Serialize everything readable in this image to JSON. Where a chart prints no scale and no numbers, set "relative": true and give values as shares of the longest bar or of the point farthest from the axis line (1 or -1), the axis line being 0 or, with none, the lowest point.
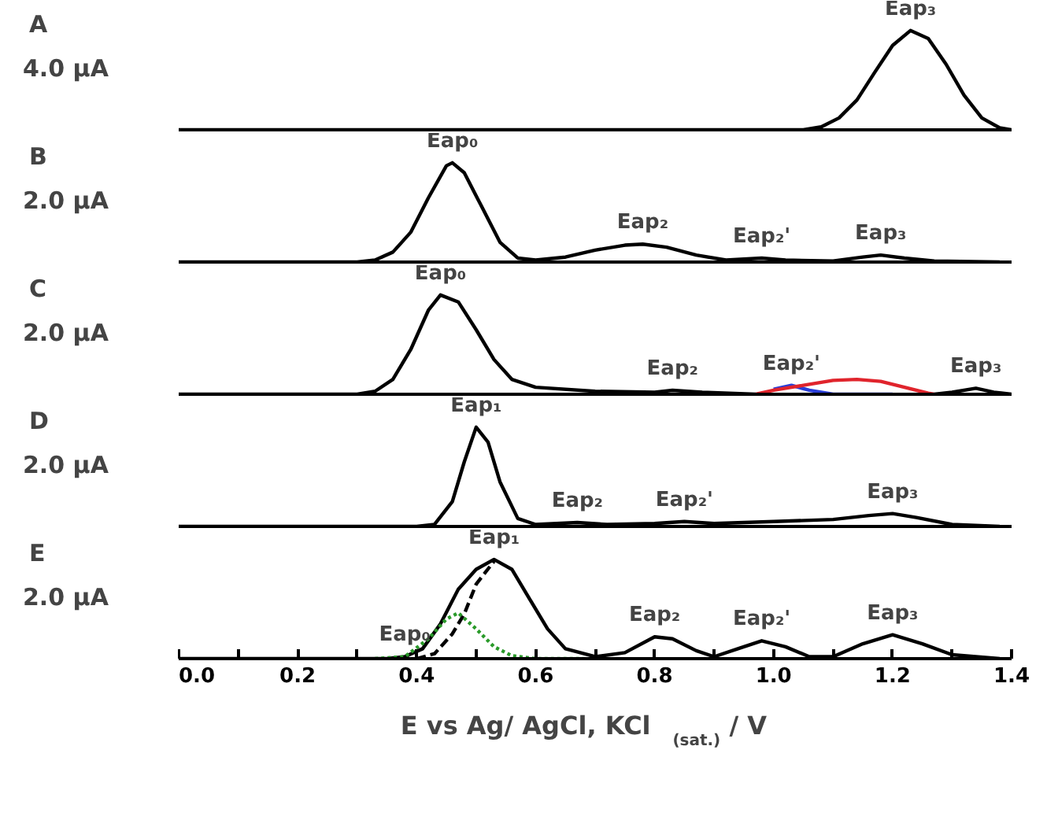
{
  "chart_data": [
    {
      "type": "line",
      "title": "A",
      "relative": true,
      "xlim": [
        0.0,
        1.4
      ],
      "tick_labels": false,
      "annotations": [
        "4.0 μA",
        {
          "text": "Eap₃",
          "x": 1.23,
          "y": 1.0
        }
      ],
      "series": [
        {
          "color": "#000000",
          "x": [
            0.0,
            0.2,
            0.4,
            0.6,
            0.8,
            1.0,
            1.05,
            1.08,
            1.11,
            1.14,
            1.17,
            1.2,
            1.23,
            1.26,
            1.29,
            1.32,
            1.35,
            1.38,
            1.4
          ],
          "values": [
            0,
            0,
            0,
            0,
            0,
            0,
            0,
            0.03,
            0.12,
            0.3,
            0.58,
            0.85,
            1.0,
            0.92,
            0.66,
            0.35,
            0.12,
            0.02,
            0
          ]
        }
      ]
    },
    {
      "type": "line",
      "title": "B",
      "relative": true,
      "xlim": [
        0.0,
        1.4
      ],
      "tick_labels": false,
      "annotations": [
        "2.0 μA",
        {
          "text": "Eap₀",
          "x": 0.46,
          "y": 1.0
        },
        {
          "text": "Eap₂",
          "x": 0.78,
          "y": 0.18
        },
        {
          "text": "Eap₂'",
          "x": 0.98,
          "y": 0.04
        },
        {
          "text": "Eap₃",
          "x": 1.18,
          "y": 0.07
        }
      ],
      "series": [
        {
          "color": "#000000",
          "x": [
            0.0,
            0.3,
            0.33,
            0.36,
            0.39,
            0.42,
            0.45,
            0.46,
            0.48,
            0.51,
            0.54,
            0.57,
            0.6,
            0.65,
            0.7,
            0.75,
            0.78,
            0.82,
            0.87,
            0.92,
            0.98,
            1.02,
            1.1,
            1.15,
            1.18,
            1.22,
            1.27,
            1.38
          ],
          "values": [
            0,
            0,
            0.02,
            0.1,
            0.3,
            0.65,
            0.97,
            1.0,
            0.9,
            0.55,
            0.2,
            0.04,
            0.02,
            0.05,
            0.12,
            0.17,
            0.18,
            0.15,
            0.07,
            0.02,
            0.04,
            0.02,
            0.01,
            0.05,
            0.07,
            0.04,
            0.01,
            0
          ]
        }
      ]
    },
    {
      "type": "line",
      "title": "C",
      "relative": true,
      "xlim": [
        0.0,
        1.4
      ],
      "tick_labels": false,
      "annotations": [
        "2.0 μA",
        {
          "text": "Eap₀",
          "x": 0.44,
          "y": 1.0
        },
        {
          "text": "Eap₂",
          "x": 0.83,
          "y": 0.04
        },
        {
          "text": "Eap₂'",
          "x": 1.03,
          "y": 0.09
        },
        {
          "text": "Eap₃",
          "x": 1.34,
          "y": 0.06
        }
      ],
      "series": [
        {
          "color": "#000000",
          "x": [
            0.0,
            0.3,
            0.33,
            0.36,
            0.39,
            0.42,
            0.44,
            0.47,
            0.5,
            0.53,
            0.56,
            0.6,
            0.7,
            0.8,
            0.83,
            0.88,
            0.97,
            1.0,
            1.27,
            1.3,
            1.34,
            1.37,
            1.4
          ],
          "values": [
            0,
            0,
            0.03,
            0.15,
            0.45,
            0.85,
            1.0,
            0.93,
            0.65,
            0.35,
            0.15,
            0.07,
            0.03,
            0.02,
            0.04,
            0.02,
            0,
            null,
            0,
            0.02,
            0.06,
            0.02,
            0
          ]
        },
        {
          "color": "#2a3ed8",
          "x": [
            1.0,
            1.03,
            1.06,
            1.1,
            1.2
          ],
          "values": [
            0.05,
            0.09,
            0.04,
            0.0,
            0.0
          ]
        },
        {
          "color": "#e0242c",
          "x": [
            0.97,
            1.0,
            1.05,
            1.1,
            1.14,
            1.18,
            1.22,
            1.26,
            1.27
          ],
          "values": [
            0,
            0.04,
            0.09,
            0.14,
            0.15,
            0.13,
            0.07,
            0.01,
            0
          ]
        }
      ]
    },
    {
      "type": "line",
      "title": "D",
      "relative": true,
      "xlim": [
        0.0,
        1.4
      ],
      "tick_labels": false,
      "annotations": [
        "2.0 μA",
        {
          "text": "Eap₁",
          "x": 0.5,
          "y": 1.0
        },
        {
          "text": "Eap₂",
          "x": 0.67,
          "y": 0.04
        },
        {
          "text": "Eap₂'",
          "x": 0.85,
          "y": 0.05
        },
        {
          "text": "Eap₃",
          "x": 1.2,
          "y": 0.13
        }
      ],
      "series": [
        {
          "color": "#000000",
          "x": [
            0.0,
            0.4,
            0.43,
            0.46,
            0.48,
            0.5,
            0.52,
            0.54,
            0.57,
            0.6,
            0.67,
            0.72,
            0.8,
            0.85,
            0.9,
            1.0,
            1.1,
            1.16,
            1.2,
            1.24,
            1.3,
            1.38
          ],
          "values": [
            0,
            0,
            0.02,
            0.25,
            0.65,
            1.0,
            0.85,
            0.45,
            0.08,
            0.02,
            0.04,
            0.02,
            0.03,
            0.05,
            0.03,
            0.05,
            0.07,
            0.11,
            0.13,
            0.09,
            0.02,
            0
          ]
        }
      ]
    },
    {
      "type": "line",
      "title": "E",
      "relative": true,
      "xlim": [
        0.0,
        1.4
      ],
      "tick_labels": "x",
      "xlabel": "E vs Ag/ AgCl, KCl$_{(sat.)}$ / V",
      "xticks": [
        {
          "value": 0.0,
          "label": "0.0"
        },
        {
          "value": 0.1,
          "label": null
        },
        0.2,
        {
          "value": 0.3,
          "label": null
        },
        0.4,
        {
          "value": 0.5,
          "label": null
        },
        0.6,
        {
          "value": 0.7,
          "label": null
        },
        0.8,
        {
          "value": 0.9,
          "label": null
        },
        {
          "value": 1.0,
          "label": "1.0"
        },
        {
          "value": 1.1,
          "label": null
        },
        1.2,
        {
          "value": 1.3,
          "label": null
        },
        1.4
      ],
      "annotations": [
        "2.0 μA",
        {
          "text": "Eap₀",
          "x": 0.38,
          "y": 0.02
        },
        {
          "text": "Eap₁",
          "x": 0.53,
          "y": 1.0
        },
        {
          "text": "Eap₂",
          "x": 0.8,
          "y": 0.22
        },
        {
          "text": "Eap₂'",
          "x": 0.98,
          "y": 0.18
        },
        {
          "text": "Eap₃",
          "x": 1.2,
          "y": 0.24
        }
      ],
      "series": [
        {
          "color": "#000000",
          "line_style": "solid",
          "x": [
            0.0,
            0.35,
            0.38,
            0.41,
            0.44,
            0.47,
            0.5,
            0.53,
            0.56,
            0.59,
            0.62,
            0.65,
            0.7,
            0.75,
            0.8,
            0.83,
            0.87,
            0.9,
            0.94,
            0.98,
            1.02,
            1.06,
            1.1,
            1.15,
            1.2,
            1.25,
            1.3,
            1.38
          ],
          "values": [
            0,
            0,
            0.02,
            0.1,
            0.35,
            0.7,
            0.9,
            1.0,
            0.9,
            0.6,
            0.3,
            0.1,
            0.02,
            0.06,
            0.22,
            0.2,
            0.08,
            0.02,
            0.1,
            0.18,
            0.12,
            0.02,
            0.02,
            0.15,
            0.24,
            0.15,
            0.04,
            0
          ]
        },
        {
          "color": "#000000",
          "line_style": "dashed",
          "x": [
            0.4,
            0.43,
            0.46,
            0.48,
            0.5,
            0.53
          ],
          "values": [
            0,
            0.05,
            0.25,
            0.45,
            0.75,
            0.98
          ]
        },
        {
          "color": "#2a9a2a",
          "line_style": "dotted",
          "x": [
            0.33,
            0.38,
            0.42,
            0.45,
            0.47,
            0.5,
            0.53,
            0.56,
            0.6,
            0.68
          ],
          "values": [
            0,
            0.02,
            0.2,
            0.4,
            0.46,
            0.3,
            0.12,
            0.03,
            0.0,
            0
          ]
        }
      ]
    }
  ]
}
